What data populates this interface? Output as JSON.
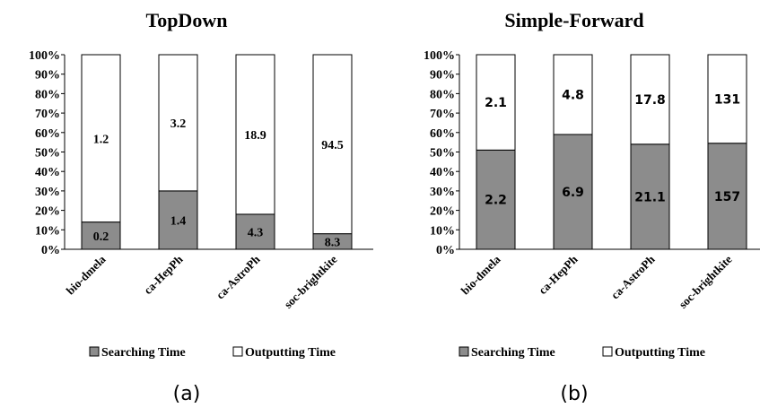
{
  "chart_data": [
    {
      "type": "bar",
      "stacked": true,
      "title": "TopDown",
      "caption": "(a)",
      "categories": [
        "bio-dmela",
        "ca-HepPh",
        "ca-AstroPh",
        "soc-brightkite"
      ],
      "series": [
        {
          "name": "Searching Time",
          "color": "#8c8c8c",
          "percent": [
            14,
            30,
            18,
            8
          ],
          "labels": [
            "0.2",
            "1.4",
            "4.3",
            "8.3"
          ]
        },
        {
          "name": "Outputting Time",
          "color": "#ffffff",
          "percent": [
            86,
            70,
            82,
            92
          ],
          "labels": [
            "1.2",
            "3.2",
            "18.9",
            "94.5"
          ]
        }
      ],
      "yticks": [
        "0%",
        "10%",
        "20%",
        "30%",
        "40%",
        "50%",
        "60%",
        "70%",
        "80%",
        "90%",
        "100%"
      ],
      "ylim": [
        0,
        100
      ]
    },
    {
      "type": "bar",
      "stacked": true,
      "title": "Simple-Forward",
      "caption": "(b)",
      "categories": [
        "bio-dmela",
        "ca-HepPh",
        "ca-AstroPh",
        "soc-brightkite"
      ],
      "series": [
        {
          "name": "Searching Time",
          "color": "#8c8c8c",
          "percent": [
            51,
            59,
            54,
            54.5
          ],
          "labels": [
            "2.2",
            "6.9",
            "21.1",
            "157"
          ]
        },
        {
          "name": "Outputting Time",
          "color": "#ffffff",
          "percent": [
            49,
            41,
            46,
            45.5
          ],
          "labels": [
            "2.1",
            "4.8",
            "17.8",
            "131"
          ]
        }
      ],
      "yticks": [
        "0%",
        "10%",
        "20%",
        "30%",
        "40%",
        "50%",
        "60%",
        "70%",
        "80%",
        "90%",
        "100%"
      ],
      "ylim": [
        0,
        100
      ]
    }
  ]
}
